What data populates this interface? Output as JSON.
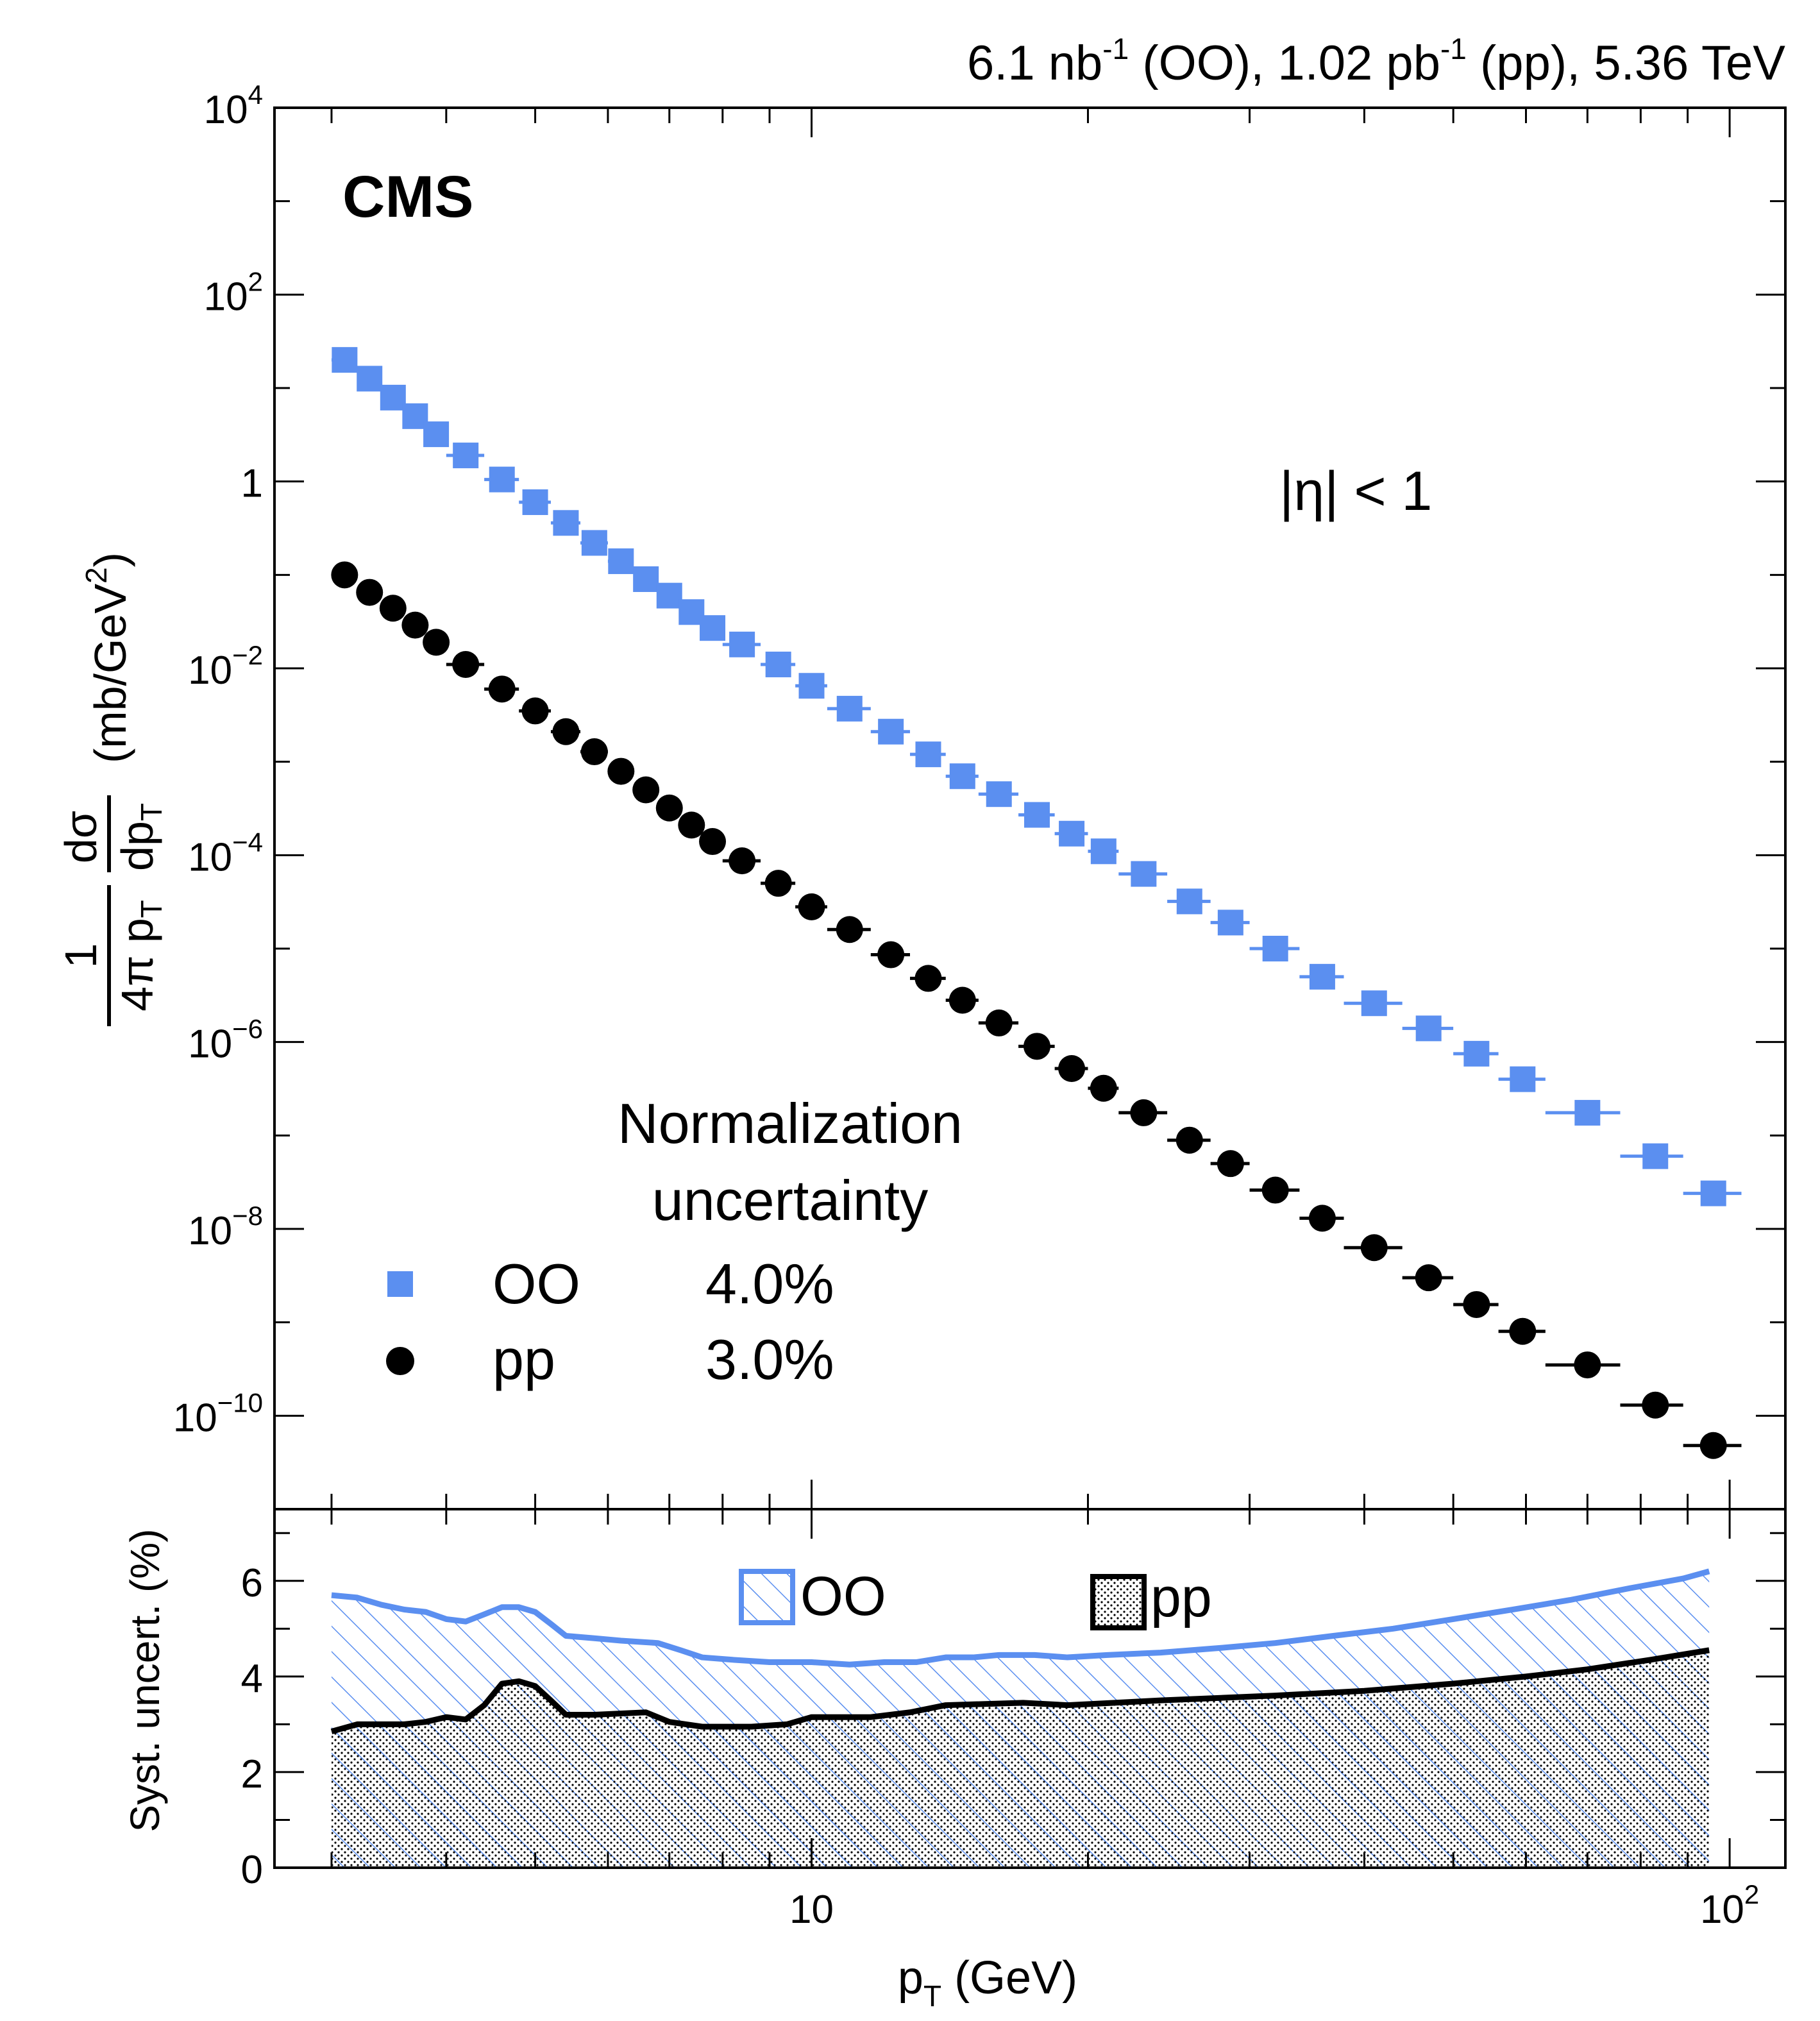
{
  "header": {
    "lumi_prefix": "6.1 nb",
    "lumi_exp1": "-1",
    "lumi_mid": " (OO), 1.02 pb",
    "lumi_exp2": "-1",
    "lumi_suffix": " (pp), 5.36 TeV"
  },
  "labels": {
    "experiment": "CMS",
    "eta_cut": "|η| < 1",
    "norm_title_line1": "Normalization",
    "norm_title_line2": "uncertainty",
    "ylabel_upper": "1/(4π p_T) dσ/dp_T (mb/GeV²)",
    "ylabel_upper_unit": "(mb/GeV",
    "ylabel_upper_unit_exp": "2",
    "ylabel_upper_unit_close": ")",
    "ylabel_lower": "Syst. uncert. (%)",
    "xlabel_p": "p",
    "xlabel_sub": "T",
    "xlabel_unit": " (GeV)"
  },
  "legend": {
    "oo_name": "OO",
    "oo_norm": "4.0%",
    "pp_name": "pp",
    "pp_norm": "3.0%",
    "lower_oo": "OO",
    "lower_pp": "pp"
  },
  "colors": {
    "oo": "#5b8ff0",
    "pp": "#000000"
  },
  "chart_data": [
    {
      "type": "scatter",
      "title": "6.1 nb-1 (OO), 1.02 pb-1 (pp), 5.36 TeV",
      "xlabel": "pT (GeV)",
      "ylabel": "1/(4π pT) dσ/dpT (mb/GeV²)",
      "xscale": "log",
      "yscale": "log",
      "xlim": [
        2.6,
        115
      ],
      "ylim": [
        1e-11,
        10000
      ],
      "yticks": [
        {
          "value": 1e-10,
          "base": "10",
          "exp": "−10"
        },
        {
          "value": 1e-08,
          "base": "10",
          "exp": "−8"
        },
        {
          "value": 1e-06,
          "base": "10",
          "exp": "−6"
        },
        {
          "value": 0.0001,
          "base": "10",
          "exp": "−4"
        },
        {
          "value": 0.01,
          "base": "10",
          "exp": "−2"
        },
        {
          "value": 1,
          "base": "1",
          "exp": ""
        },
        {
          "value": 100,
          "base": "10",
          "exp": "2"
        },
        {
          "value": 10000,
          "base": "10",
          "exp": "4"
        }
      ],
      "series": [
        {
          "name": "OO",
          "marker": "square",
          "points": [
            {
              "x": 3.1,
              "y": 20,
              "xlo": 3.0,
              "xhi": 3.2
            },
            {
              "x": 3.3,
              "y": 12.6,
              "xlo": 3.2,
              "xhi": 3.4
            },
            {
              "x": 3.5,
              "y": 7.9,
              "xlo": 3.4,
              "xhi": 3.6
            },
            {
              "x": 3.7,
              "y": 5.0,
              "xlo": 3.6,
              "xhi": 3.8
            },
            {
              "x": 3.9,
              "y": 3.2,
              "xlo": 3.8,
              "xhi": 4.0
            },
            {
              "x": 4.2,
              "y": 1.9,
              "xlo": 4.0,
              "xhi": 4.4
            },
            {
              "x": 4.6,
              "y": 1.05,
              "xlo": 4.4,
              "xhi": 4.8
            },
            {
              "x": 5.0,
              "y": 0.6,
              "xlo": 4.8,
              "xhi": 5.2
            },
            {
              "x": 5.4,
              "y": 0.36,
              "xlo": 5.2,
              "xhi": 5.6
            },
            {
              "x": 5.8,
              "y": 0.22,
              "xlo": 5.6,
              "xhi": 6.0
            },
            {
              "x": 6.2,
              "y": 0.14,
              "xlo": 6.0,
              "xhi": 6.4
            },
            {
              "x": 6.6,
              "y": 0.09,
              "xlo": 6.4,
              "xhi": 6.8
            },
            {
              "x": 7.0,
              "y": 0.06,
              "xlo": 6.8,
              "xhi": 7.2
            },
            {
              "x": 7.4,
              "y": 0.04,
              "xlo": 7.2,
              "xhi": 7.6
            },
            {
              "x": 7.8,
              "y": 0.027,
              "xlo": 7.6,
              "xhi": 8.0
            },
            {
              "x": 8.4,
              "y": 0.018,
              "xlo": 8.0,
              "xhi": 8.8
            },
            {
              "x": 9.2,
              "y": 0.011,
              "xlo": 8.8,
              "xhi": 9.6
            },
            {
              "x": 10.0,
              "y": 0.0065,
              "xlo": 9.6,
              "xhi": 10.4
            },
            {
              "x": 11.0,
              "y": 0.0037,
              "xlo": 10.4,
              "xhi": 11.6
            },
            {
              "x": 12.2,
              "y": 0.0021,
              "xlo": 11.6,
              "xhi": 12.8
            },
            {
              "x": 13.4,
              "y": 0.0012,
              "xlo": 12.8,
              "xhi": 14.0
            },
            {
              "x": 14.6,
              "y": 0.0007,
              "xlo": 14.0,
              "xhi": 15.2
            },
            {
              "x": 16.0,
              "y": 0.00045,
              "xlo": 15.2,
              "xhi": 16.8
            },
            {
              "x": 17.6,
              "y": 0.00027,
              "xlo": 16.8,
              "xhi": 18.4
            },
            {
              "x": 19.2,
              "y": 0.00017,
              "xlo": 18.4,
              "xhi": 20.0
            },
            {
              "x": 20.8,
              "y": 0.00011,
              "xlo": 20.0,
              "xhi": 21.6
            },
            {
              "x": 23.0,
              "y": 6.3e-05,
              "xlo": 21.6,
              "xhi": 24.4
            },
            {
              "x": 25.8,
              "y": 3.2e-05,
              "xlo": 24.4,
              "xhi": 27.2
            },
            {
              "x": 28.6,
              "y": 1.9e-05,
              "xlo": 27.2,
              "xhi": 30.0
            },
            {
              "x": 32.0,
              "y": 1e-05,
              "xlo": 30.0,
              "xhi": 34.0
            },
            {
              "x": 36.0,
              "y": 5e-06,
              "xlo": 34.0,
              "xhi": 38.0
            },
            {
              "x": 41.0,
              "y": 2.6e-06,
              "xlo": 38.0,
              "xhi": 44.0
            },
            {
              "x": 47.0,
              "y": 1.4e-06,
              "xlo": 44.0,
              "xhi": 50.0
            },
            {
              "x": 53.0,
              "y": 7.5e-07,
              "xlo": 50.0,
              "xhi": 56.0
            },
            {
              "x": 59.5,
              "y": 4e-07,
              "xlo": 56.0,
              "xhi": 63.0
            },
            {
              "x": 70.0,
              "y": 1.75e-07,
              "xlo": 63.0,
              "xhi": 76.0
            },
            {
              "x": 83.0,
              "y": 6e-08,
              "xlo": 76.0,
              "xhi": 89.0
            },
            {
              "x": 96.0,
              "y": 2.4e-08,
              "xlo": 89.0,
              "xhi": 103.0
            }
          ]
        },
        {
          "name": "pp",
          "marker": "circle",
          "points": [
            {
              "x": 3.1,
              "y": 0.1,
              "xlo": 3.0,
              "xhi": 3.2
            },
            {
              "x": 3.3,
              "y": 0.065,
              "xlo": 3.2,
              "xhi": 3.4
            },
            {
              "x": 3.5,
              "y": 0.044,
              "xlo": 3.4,
              "xhi": 3.6
            },
            {
              "x": 3.7,
              "y": 0.029,
              "xlo": 3.6,
              "xhi": 3.8
            },
            {
              "x": 3.9,
              "y": 0.019,
              "xlo": 3.8,
              "xhi": 4.0
            },
            {
              "x": 4.2,
              "y": 0.011,
              "xlo": 4.0,
              "xhi": 4.4
            },
            {
              "x": 4.6,
              "y": 0.006,
              "xlo": 4.4,
              "xhi": 4.8
            },
            {
              "x": 5.0,
              "y": 0.0035,
              "xlo": 4.8,
              "xhi": 5.2
            },
            {
              "x": 5.4,
              "y": 0.0021,
              "xlo": 5.2,
              "xhi": 5.6
            },
            {
              "x": 5.8,
              "y": 0.00128,
              "xlo": 5.6,
              "xhi": 6.0
            },
            {
              "x": 6.2,
              "y": 0.00079,
              "xlo": 6.0,
              "xhi": 6.4
            },
            {
              "x": 6.6,
              "y": 0.0005,
              "xlo": 6.4,
              "xhi": 6.8
            },
            {
              "x": 7.0,
              "y": 0.00032,
              "xlo": 6.8,
              "xhi": 7.2
            },
            {
              "x": 7.4,
              "y": 0.00021,
              "xlo": 7.2,
              "xhi": 7.6
            },
            {
              "x": 7.8,
              "y": 0.00014,
              "xlo": 7.6,
              "xhi": 8.0
            },
            {
              "x": 8.4,
              "y": 8.7e-05,
              "xlo": 8.0,
              "xhi": 8.8
            },
            {
              "x": 9.2,
              "y": 5e-05,
              "xlo": 8.8,
              "xhi": 9.6
            },
            {
              "x": 10.0,
              "y": 2.8e-05,
              "xlo": 9.6,
              "xhi": 10.4
            },
            {
              "x": 11.0,
              "y": 1.6e-05,
              "xlo": 10.4,
              "xhi": 11.6
            },
            {
              "x": 12.2,
              "y": 8.6e-06,
              "xlo": 11.6,
              "xhi": 12.8
            },
            {
              "x": 13.4,
              "y": 4.8e-06,
              "xlo": 12.8,
              "xhi": 14.0
            },
            {
              "x": 14.6,
              "y": 2.8e-06,
              "xlo": 14.0,
              "xhi": 15.2
            },
            {
              "x": 16.0,
              "y": 1.6e-06,
              "xlo": 15.2,
              "xhi": 16.8
            },
            {
              "x": 17.6,
              "y": 9e-07,
              "xlo": 16.8,
              "xhi": 18.4
            },
            {
              "x": 19.2,
              "y": 5.2e-07,
              "xlo": 18.4,
              "xhi": 20.0
            },
            {
              "x": 20.8,
              "y": 3.2e-07,
              "xlo": 20.0,
              "xhi": 21.6
            },
            {
              "x": 23.0,
              "y": 1.75e-07,
              "xlo": 21.6,
              "xhi": 24.4
            },
            {
              "x": 25.8,
              "y": 8.9e-08,
              "xlo": 24.4,
              "xhi": 27.2
            },
            {
              "x": 28.6,
              "y": 5e-08,
              "xlo": 27.2,
              "xhi": 30.0
            },
            {
              "x": 32.0,
              "y": 2.6e-08,
              "xlo": 30.0,
              "xhi": 34.0
            },
            {
              "x": 36.0,
              "y": 1.3e-08,
              "xlo": 34.0,
              "xhi": 38.0
            },
            {
              "x": 41.0,
              "y": 6.3e-09,
              "xlo": 38.0,
              "xhi": 44.0
            },
            {
              "x": 47.0,
              "y": 3e-09,
              "xlo": 44.0,
              "xhi": 50.0
            },
            {
              "x": 53.0,
              "y": 1.55e-09,
              "xlo": 50.0,
              "xhi": 56.0
            },
            {
              "x": 59.5,
              "y": 8e-10,
              "xlo": 56.0,
              "xhi": 63.0
            },
            {
              "x": 70.0,
              "y": 3.5e-10,
              "xlo": 63.0,
              "xhi": 76.0
            },
            {
              "x": 83.0,
              "y": 1.3e-10,
              "xlo": 76.0,
              "xhi": 89.0
            },
            {
              "x": 96.0,
              "y": 4.8e-11,
              "xlo": 89.0,
              "xhi": 103.0
            }
          ]
        }
      ]
    },
    {
      "type": "area",
      "xlabel": "pT (GeV)",
      "ylabel": "Syst. uncert. (%)",
      "xscale": "log",
      "xlim": [
        2.6,
        115
      ],
      "ylim": [
        0,
        7.5
      ],
      "yticks": [
        0,
        2,
        4,
        6
      ],
      "xticks": [
        {
          "value": 10,
          "base": "10",
          "exp": ""
        },
        {
          "value": 100,
          "base": "10",
          "exp": "2"
        }
      ],
      "series": [
        {
          "name": "OO",
          "fill": "hatched",
          "points": [
            {
              "x": 3.0,
              "y": 5.7
            },
            {
              "x": 3.2,
              "y": 5.65
            },
            {
              "x": 3.4,
              "y": 5.5
            },
            {
              "x": 3.6,
              "y": 5.4
            },
            {
              "x": 3.8,
              "y": 5.35
            },
            {
              "x": 4.0,
              "y": 5.2
            },
            {
              "x": 4.2,
              "y": 5.15
            },
            {
              "x": 4.4,
              "y": 5.3
            },
            {
              "x": 4.6,
              "y": 5.45
            },
            {
              "x": 4.8,
              "y": 5.45
            },
            {
              "x": 5.0,
              "y": 5.35
            },
            {
              "x": 5.2,
              "y": 5.1
            },
            {
              "x": 5.4,
              "y": 4.85
            },
            {
              "x": 5.8,
              "y": 4.8
            },
            {
              "x": 6.2,
              "y": 4.75
            },
            {
              "x": 6.8,
              "y": 4.7
            },
            {
              "x": 7.2,
              "y": 4.55
            },
            {
              "x": 7.6,
              "y": 4.4
            },
            {
              "x": 8.2,
              "y": 4.35
            },
            {
              "x": 9.0,
              "y": 4.3
            },
            {
              "x": 10.0,
              "y": 4.3
            },
            {
              "x": 11.0,
              "y": 4.25
            },
            {
              "x": 12.0,
              "y": 4.3
            },
            {
              "x": 13.0,
              "y": 4.3
            },
            {
              "x": 14.0,
              "y": 4.4
            },
            {
              "x": 15.0,
              "y": 4.4
            },
            {
              "x": 16.0,
              "y": 4.45
            },
            {
              "x": 17.5,
              "y": 4.45
            },
            {
              "x": 19.0,
              "y": 4.4
            },
            {
              "x": 21.0,
              "y": 4.45
            },
            {
              "x": 24.0,
              "y": 4.5
            },
            {
              "x": 28.0,
              "y": 4.6
            },
            {
              "x": 32.0,
              "y": 4.7
            },
            {
              "x": 37.0,
              "y": 4.85
            },
            {
              "x": 43.0,
              "y": 5.0
            },
            {
              "x": 50.0,
              "y": 5.2
            },
            {
              "x": 58.0,
              "y": 5.4
            },
            {
              "x": 67.0,
              "y": 5.6
            },
            {
              "x": 78.0,
              "y": 5.85
            },
            {
              "x": 89.0,
              "y": 6.05
            },
            {
              "x": 95.0,
              "y": 6.2
            }
          ]
        },
        {
          "name": "pp",
          "fill": "dotted",
          "points": [
            {
              "x": 3.0,
              "y": 2.85
            },
            {
              "x": 3.2,
              "y": 3.0
            },
            {
              "x": 3.6,
              "y": 3.0
            },
            {
              "x": 3.8,
              "y": 3.05
            },
            {
              "x": 4.0,
              "y": 3.15
            },
            {
              "x": 4.2,
              "y": 3.1
            },
            {
              "x": 4.4,
              "y": 3.4
            },
            {
              "x": 4.6,
              "y": 3.85
            },
            {
              "x": 4.8,
              "y": 3.9
            },
            {
              "x": 5.0,
              "y": 3.8
            },
            {
              "x": 5.2,
              "y": 3.5
            },
            {
              "x": 5.4,
              "y": 3.2
            },
            {
              "x": 5.8,
              "y": 3.2
            },
            {
              "x": 6.6,
              "y": 3.25
            },
            {
              "x": 7.0,
              "y": 3.05
            },
            {
              "x": 7.6,
              "y": 2.95
            },
            {
              "x": 8.6,
              "y": 2.95
            },
            {
              "x": 9.4,
              "y": 3.0
            },
            {
              "x": 10.0,
              "y": 3.15
            },
            {
              "x": 11.6,
              "y": 3.15
            },
            {
              "x": 12.8,
              "y": 3.25
            },
            {
              "x": 14.0,
              "y": 3.4
            },
            {
              "x": 17.0,
              "y": 3.45
            },
            {
              "x": 19.0,
              "y": 3.4
            },
            {
              "x": 24.0,
              "y": 3.5
            },
            {
              "x": 32.0,
              "y": 3.6
            },
            {
              "x": 40.0,
              "y": 3.7
            },
            {
              "x": 50.0,
              "y": 3.85
            },
            {
              "x": 60.0,
              "y": 4.0
            },
            {
              "x": 70.0,
              "y": 4.15
            },
            {
              "x": 82.0,
              "y": 4.35
            },
            {
              "x": 95.0,
              "y": 4.55
            }
          ]
        }
      ]
    }
  ]
}
